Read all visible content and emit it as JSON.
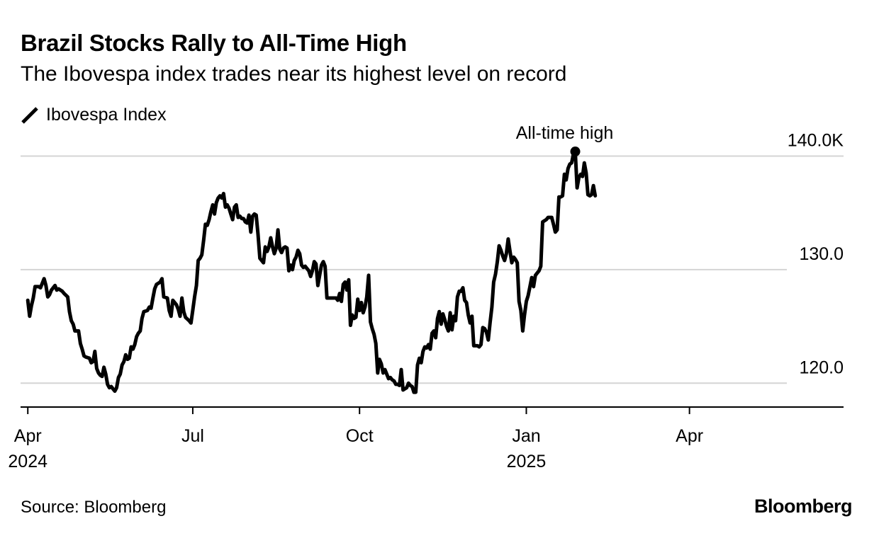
{
  "header": {
    "title": "Brazil Stocks Rally to All-Time High",
    "subtitle": "The Ibovespa index trades near its highest level on record"
  },
  "legend": {
    "label": "Ibovespa Index"
  },
  "footer": {
    "source": "Source: Bloomberg",
    "brand": "Bloomberg"
  },
  "colors": {
    "line": "#000000",
    "grid": "#d4d4d4",
    "axis": "#000000"
  },
  "chart_data": {
    "type": "line",
    "title": "Brazil Stocks Rally to All-Time High",
    "subtitle": "The Ibovespa index trades near its highest level on record",
    "xlabel": "",
    "ylabel": "",
    "ylim": [
      117.9,
      140.9
    ],
    "y_ticks": [
      {
        "value": 120,
        "label": "120.0"
      },
      {
        "value": 130,
        "label": "130.0"
      },
      {
        "value": 140,
        "label": "140.0K"
      }
    ],
    "x_range_days": [
      -4,
      450
    ],
    "x_ticks": [
      {
        "day": 0,
        "label": "Apr",
        "sublabel": "2024"
      },
      {
        "day": 91,
        "label": "Jul",
        "sublabel": ""
      },
      {
        "day": 183,
        "label": "Oct",
        "sublabel": ""
      },
      {
        "day": 275,
        "label": "Jan",
        "sublabel": "2025"
      },
      {
        "day": 365,
        "label": "Apr",
        "sublabel": ""
      }
    ],
    "x_unit": "days since 2024-04-01",
    "grid": true,
    "legend_position": "top-left",
    "series": [
      {
        "name": "Ibovespa Index",
        "points": [
          [
            0,
            127.3
          ],
          [
            1,
            125.9
          ],
          [
            2,
            126.8
          ],
          [
            3,
            127.5
          ],
          [
            4,
            128.5
          ],
          [
            6,
            128.5
          ],
          [
            7,
            128.4
          ],
          [
            8,
            128.8
          ],
          [
            9,
            129.2
          ],
          [
            10,
            128.6
          ],
          [
            11,
            127.6
          ],
          [
            12,
            127.8
          ],
          [
            13,
            128.2
          ],
          [
            15,
            128.6
          ],
          [
            16,
            128.2
          ],
          [
            17,
            128.3
          ],
          [
            19,
            128.1
          ],
          [
            20,
            127.9
          ],
          [
            22,
            127.6
          ],
          [
            23,
            126.3
          ],
          [
            24,
            125.5
          ],
          [
            25,
            125.2
          ],
          [
            26,
            124.6
          ],
          [
            28,
            124.6
          ],
          [
            29,
            123.5
          ],
          [
            30,
            123.0
          ],
          [
            31,
            122.4
          ],
          [
            32,
            122.3
          ],
          [
            34,
            122.2
          ],
          [
            35,
            121.8
          ],
          [
            36,
            121.9
          ],
          [
            37,
            122.8
          ],
          [
            38,
            121.3
          ],
          [
            39,
            120.9
          ],
          [
            40,
            120.7
          ],
          [
            41,
            120.6
          ],
          [
            42,
            121.4
          ],
          [
            43,
            120.8
          ],
          [
            44,
            119.9
          ],
          [
            45,
            119.6
          ],
          [
            46,
            119.7
          ],
          [
            47,
            119.5
          ],
          [
            48,
            119.3
          ],
          [
            49,
            119.6
          ],
          [
            50,
            120.5
          ],
          [
            51,
            120.8
          ],
          [
            52,
            121.6
          ],
          [
            53,
            121.9
          ],
          [
            54,
            122.5
          ],
          [
            55,
            122.1
          ],
          [
            56,
            122.2
          ],
          [
            57,
            123.2
          ],
          [
            58,
            123.0
          ],
          [
            59,
            123.4
          ],
          [
            60,
            124.1
          ],
          [
            61,
            124.4
          ],
          [
            62,
            124.6
          ],
          [
            63,
            125.7
          ],
          [
            64,
            126.3
          ],
          [
            66,
            126.4
          ],
          [
            67,
            126.7
          ],
          [
            68,
            126.6
          ],
          [
            69,
            127.5
          ],
          [
            70,
            128.3
          ],
          [
            71,
            128.7
          ],
          [
            72,
            128.8
          ],
          [
            73,
            128.9
          ],
          [
            74,
            129.2
          ],
          [
            75,
            127.6
          ],
          [
            77,
            127.5
          ],
          [
            78,
            126.4
          ],
          [
            79,
            125.9
          ],
          [
            80,
            127.3
          ],
          [
            81,
            127.1
          ],
          [
            82,
            126.9
          ],
          [
            83,
            126.5
          ],
          [
            84,
            125.9
          ],
          [
            85,
            127.5
          ],
          [
            86,
            126.3
          ],
          [
            87,
            125.8
          ],
          [
            89,
            125.5
          ],
          [
            90,
            125.3
          ],
          [
            91,
            126.4
          ],
          [
            92,
            127.6
          ],
          [
            93,
            128.6
          ],
          [
            94,
            130.8
          ],
          [
            95,
            131.0
          ],
          [
            96,
            131.3
          ],
          [
            97,
            132.6
          ],
          [
            98,
            134.0
          ],
          [
            99,
            133.9
          ],
          [
            100,
            134.4
          ],
          [
            101,
            135.1
          ],
          [
            102,
            135.7
          ],
          [
            103,
            134.9
          ],
          [
            104,
            135.9
          ],
          [
            105,
            136.3
          ],
          [
            106,
            136.5
          ],
          [
            107,
            136.3
          ],
          [
            108,
            136.7
          ],
          [
            109,
            135.5
          ],
          [
            110,
            135.7
          ],
          [
            111,
            135.4
          ],
          [
            112,
            134.9
          ],
          [
            113,
            134.4
          ],
          [
            114,
            135.5
          ],
          [
            115,
            135.7
          ],
          [
            116,
            134.6
          ],
          [
            117,
            134.7
          ],
          [
            118,
            134.5
          ],
          [
            119,
            134.5
          ],
          [
            120,
            134.2
          ],
          [
            121,
            134.1
          ],
          [
            122,
            134.8
          ],
          [
            123,
            133.3
          ],
          [
            124,
            134.7
          ],
          [
            125,
            134.9
          ],
          [
            126,
            134.8
          ],
          [
            127,
            133.1
          ],
          [
            128,
            131.0
          ],
          [
            129,
            130.8
          ],
          [
            130,
            130.6
          ],
          [
            131,
            132.0
          ],
          [
            132,
            131.6
          ],
          [
            133,
            132.0
          ],
          [
            134,
            132.8
          ],
          [
            135,
            132.0
          ],
          [
            136,
            131.4
          ],
          [
            137,
            131.9
          ],
          [
            138,
            133.5
          ],
          [
            139,
            131.8
          ],
          [
            140,
            131.5
          ],
          [
            141,
            131.9
          ],
          [
            142,
            132.0
          ],
          [
            143,
            131.9
          ],
          [
            144,
            129.9
          ],
          [
            145,
            130.4
          ],
          [
            146,
            130.0
          ],
          [
            147,
            130.8
          ],
          [
            148,
            131.1
          ],
          [
            149,
            131.7
          ],
          [
            150,
            131.4
          ],
          [
            151,
            130.4
          ],
          [
            152,
            130.2
          ],
          [
            153,
            130.3
          ],
          [
            154,
            130.1
          ],
          [
            155,
            129.9
          ],
          [
            156,
            129.4
          ],
          [
            157,
            129.9
          ],
          [
            158,
            130.7
          ],
          [
            159,
            130.5
          ],
          [
            160,
            128.6
          ],
          [
            161,
            129.5
          ],
          [
            162,
            130.4
          ],
          [
            163,
            130.7
          ],
          [
            164,
            130.3
          ],
          [
            165,
            127.5
          ],
          [
            166,
            127.5
          ],
          [
            167,
            127.5
          ],
          [
            168,
            127.5
          ],
          [
            169,
            127.5
          ],
          [
            170,
            127.5
          ],
          [
            171,
            127.3
          ],
          [
            172,
            127.9
          ],
          [
            173,
            127.2
          ],
          [
            174,
            128.7
          ],
          [
            175,
            128.9
          ],
          [
            176,
            128.2
          ],
          [
            177,
            129.1
          ],
          [
            178,
            125.1
          ],
          [
            179,
            126.0
          ],
          [
            180,
            125.7
          ],
          [
            181,
            125.8
          ],
          [
            182,
            127.4
          ],
          [
            183,
            126.4
          ],
          [
            184,
            127.1
          ],
          [
            185,
            126.2
          ],
          [
            186,
            126.7
          ],
          [
            187,
            127.6
          ],
          [
            188,
            129.5
          ],
          [
            189,
            125.4
          ],
          [
            190,
            124.8
          ],
          [
            191,
            124.3
          ],
          [
            192,
            123.5
          ],
          [
            193,
            120.9
          ],
          [
            194,
            122.1
          ],
          [
            195,
            121.7
          ],
          [
            196,
            120.9
          ],
          [
            197,
            121.2
          ],
          [
            198,
            120.8
          ],
          [
            199,
            120.4
          ],
          [
            200,
            120.5
          ],
          [
            201,
            120.3
          ],
          [
            202,
            120.2
          ],
          [
            203,
            119.9
          ],
          [
            204,
            119.9
          ],
          [
            205,
            119.8
          ],
          [
            206,
            121.2
          ],
          [
            207,
            119.4
          ],
          [
            208,
            119.5
          ],
          [
            209,
            119.6
          ],
          [
            210,
            120.0
          ],
          [
            211,
            119.8
          ],
          [
            212,
            119.7
          ],
          [
            213,
            119.2
          ],
          [
            214,
            119.2
          ],
          [
            215,
            121.6
          ],
          [
            216,
            122.2
          ],
          [
            217,
            121.8
          ],
          [
            218,
            122.8
          ],
          [
            219,
            123.2
          ],
          [
            220,
            123.1
          ],
          [
            221,
            123.4
          ],
          [
            222,
            123.0
          ],
          [
            223,
            124.4
          ],
          [
            224,
            124.6
          ],
          [
            225,
            124.0
          ],
          [
            226,
            125.7
          ],
          [
            227,
            126.3
          ],
          [
            228,
            125.2
          ],
          [
            229,
            126.1
          ],
          [
            230,
            125.6
          ],
          [
            231,
            125.0
          ],
          [
            232,
            124.6
          ],
          [
            233,
            126.2
          ],
          [
            234,
            124.7
          ],
          [
            235,
            125.9
          ],
          [
            236,
            125.5
          ],
          [
            237,
            127.6
          ],
          [
            238,
            128.1
          ],
          [
            239,
            128.1
          ],
          [
            240,
            128.4
          ],
          [
            241,
            127.3
          ],
          [
            242,
            127.1
          ],
          [
            243,
            126.0
          ],
          [
            244,
            125.3
          ],
          [
            245,
            125.9
          ],
          [
            246,
            123.3
          ],
          [
            248,
            123.3
          ],
          [
            249,
            123.2
          ],
          [
            250,
            123.4
          ],
          [
            251,
            124.9
          ],
          [
            252,
            124.8
          ],
          [
            253,
            124.5
          ],
          [
            254,
            123.8
          ],
          [
            255,
            125.3
          ],
          [
            256,
            126.7
          ],
          [
            257,
            128.9
          ],
          [
            258,
            129.6
          ],
          [
            259,
            130.7
          ],
          [
            260,
            132.1
          ],
          [
            261,
            131.7
          ],
          [
            262,
            131.2
          ],
          [
            263,
            130.8
          ],
          [
            264,
            131.4
          ],
          [
            265,
            132.7
          ],
          [
            266,
            131.6
          ],
          [
            267,
            130.6
          ],
          [
            268,
            131.1
          ],
          [
            269,
            130.9
          ],
          [
            270,
            130.6
          ],
          [
            271,
            127.2
          ],
          [
            272,
            126.4
          ],
          [
            273,
            124.6
          ],
          [
            274,
            126.0
          ],
          [
            275,
            127.2
          ],
          [
            276,
            127.7
          ],
          [
            277,
            128.5
          ],
          [
            278,
            129.3
          ],
          [
            279,
            128.5
          ],
          [
            280,
            129.5
          ],
          [
            281,
            129.7
          ],
          [
            282,
            129.9
          ],
          [
            283,
            130.3
          ],
          [
            284,
            134.2
          ],
          [
            286,
            134.4
          ],
          [
            287,
            134.6
          ],
          [
            288,
            134.6
          ],
          [
            289,
            134.6
          ],
          [
            290,
            134.0
          ],
          [
            291,
            133.3
          ],
          [
            292,
            133.5
          ],
          [
            293,
            136.4
          ],
          [
            294,
            136.4
          ],
          [
            295,
            136.5
          ],
          [
            296,
            138.4
          ],
          [
            297,
            137.9
          ],
          [
            298,
            138.9
          ],
          [
            299,
            139.3
          ],
          [
            300,
            139.4
          ],
          [
            301,
            140.2
          ],
          [
            302,
            140.4
          ],
          [
            303,
            137.2
          ],
          [
            304,
            138.1
          ],
          [
            305,
            138.4
          ],
          [
            306,
            138.2
          ],
          [
            307,
            139.4
          ],
          [
            308,
            138.5
          ],
          [
            309,
            136.6
          ],
          [
            310,
            136.5
          ],
          [
            311,
            136.6
          ],
          [
            312,
            137.4
          ],
          [
            313,
            136.5
          ]
        ]
      }
    ],
    "annotations": [
      {
        "label": "All-time high",
        "x_day": 302,
        "y": 140.4,
        "marker": "dot"
      }
    ]
  }
}
